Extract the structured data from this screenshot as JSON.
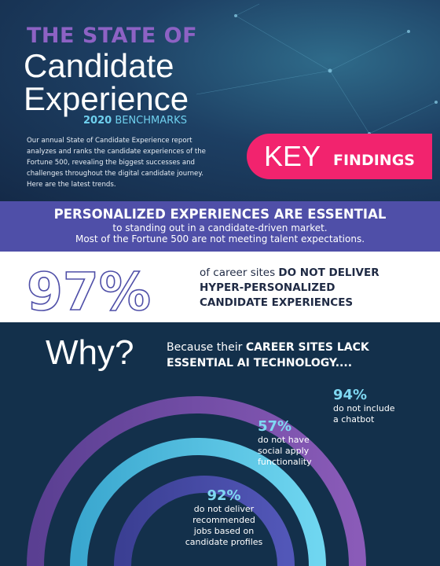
{
  "header": {
    "title_top": "THE STATE OF",
    "title_line2": "Candidate",
    "title_line3": "Experience",
    "benchmark_year": "2020",
    "benchmark_label": "BENCHMARKS",
    "intro": "Our annual State of Candidate Experience report analyzes and ranks the candidate experiences of the Fortune 500, revealing the biggest successes and challenges throughout the digital candidate journey. Here are the latest trends.",
    "key": "KEY",
    "findings": "FINDINGS"
  },
  "banner": {
    "heading": "PERSONALIZED EXPERIENCES ARE ESSENTIAL",
    "line1": "to standing out in a candidate-driven market.",
    "line2": "Most of the Fortune 500 are not meeting talent expectations."
  },
  "stat": {
    "value": "97%",
    "lead": "of career sites",
    "emphasis1": "DO NOT DELIVER",
    "emphasis2": "HYPER-PERSONALIZED",
    "emphasis3": "CANDIDATE EXPERIENCES"
  },
  "why": {
    "heading": "Why?",
    "lead": "Because their",
    "emphasis1": "CAREER SITES LACK",
    "emphasis2": "ESSENTIAL AI TECHNOLOGY...."
  },
  "findings": [
    {
      "value": "94%",
      "lines": [
        "do not include",
        "a chatbot"
      ]
    },
    {
      "value": "57%",
      "lines": [
        "do not have",
        "social apply",
        "functionality"
      ]
    },
    {
      "value": "92%",
      "lines": [
        "do not deliver",
        "recommended",
        "jobs based on",
        "candidate profiles"
      ]
    }
  ]
}
